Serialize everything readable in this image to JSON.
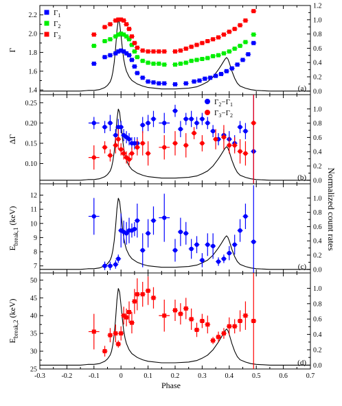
{
  "chart_data": [
    {
      "type": "scatter",
      "panel_label": "(a)",
      "ylabel": "Γ",
      "ylim": [
        1.35,
        2.3
      ],
      "yticks": [
        1.4,
        1.6,
        1.8,
        2.0,
        2.2
      ],
      "y2lim": [
        -0.05,
        1.2
      ],
      "y2ticks": [
        0.0,
        0.2,
        0.4,
        0.6,
        0.8,
        1.0,
        1.2
      ],
      "legend": {
        "position": "top-left",
        "entries": [
          {
            "base": "Γ",
            "sub": "1",
            "color": "#0000ff",
            "marker": "square"
          },
          {
            "base": "Γ",
            "sub": "2",
            "color": "#00ee00",
            "marker": "square"
          },
          {
            "base": "Γ",
            "sub": "3",
            "color": "#ff0000",
            "marker": "square"
          }
        ]
      },
      "series": [
        {
          "name": "Γ1",
          "color": "#0000ff",
          "marker": "square",
          "x": [
            -0.1,
            -0.06,
            -0.04,
            -0.02,
            -0.01,
            0.0,
            0.01,
            0.02,
            0.03,
            0.04,
            0.05,
            0.06,
            0.08,
            0.1,
            0.12,
            0.14,
            0.16,
            0.2,
            0.24,
            0.27,
            0.29,
            0.31,
            0.33,
            0.35,
            0.37,
            0.39,
            0.41,
            0.43,
            0.45,
            0.47,
            0.49
          ],
          "y": [
            1.68,
            1.75,
            1.77,
            1.79,
            1.81,
            1.82,
            1.81,
            1.79,
            1.77,
            1.72,
            1.65,
            1.58,
            1.53,
            1.49,
            1.48,
            1.47,
            1.47,
            1.46,
            1.47,
            1.49,
            1.5,
            1.52,
            1.53,
            1.55,
            1.57,
            1.6,
            1.63,
            1.67,
            1.72,
            1.78,
            1.9
          ],
          "xerr": 0.01,
          "yerr": 0.015
        },
        {
          "name": "Γ2",
          "color": "#00ee00",
          "marker": "square",
          "x": [
            -0.1,
            -0.06,
            -0.04,
            -0.02,
            -0.01,
            0.0,
            0.01,
            0.02,
            0.03,
            0.04,
            0.05,
            0.06,
            0.08,
            0.1,
            0.12,
            0.14,
            0.16,
            0.2,
            0.22,
            0.24,
            0.26,
            0.28,
            0.3,
            0.32,
            0.34,
            0.36,
            0.38,
            0.4,
            0.42,
            0.44,
            0.46,
            0.49
          ],
          "y": [
            1.87,
            1.92,
            1.94,
            1.97,
            1.99,
            2.0,
            1.99,
            1.97,
            1.94,
            1.88,
            1.81,
            1.75,
            1.71,
            1.69,
            1.68,
            1.68,
            1.67,
            1.67,
            1.68,
            1.69,
            1.71,
            1.72,
            1.73,
            1.74,
            1.76,
            1.77,
            1.79,
            1.81,
            1.84,
            1.87,
            1.91,
            1.99
          ],
          "xerr": 0.01,
          "yerr": 0.015
        },
        {
          "name": "Γ3",
          "color": "#ff0000",
          "marker": "square",
          "x": [
            -0.1,
            -0.06,
            -0.04,
            -0.02,
            -0.01,
            0.0,
            0.01,
            0.02,
            0.03,
            0.04,
            0.05,
            0.06,
            0.08,
            0.1,
            0.12,
            0.14,
            0.16,
            0.2,
            0.22,
            0.24,
            0.26,
            0.28,
            0.3,
            0.32,
            0.34,
            0.36,
            0.38,
            0.4,
            0.42,
            0.44,
            0.46,
            0.49
          ],
          "y": [
            1.99,
            2.07,
            2.1,
            2.14,
            2.15,
            2.15,
            2.14,
            2.1,
            2.05,
            1.97,
            1.9,
            1.85,
            1.82,
            1.81,
            1.81,
            1.81,
            1.81,
            1.81,
            1.82,
            1.84,
            1.86,
            1.88,
            1.9,
            1.92,
            1.94,
            1.96,
            1.99,
            2.02,
            2.05,
            2.09,
            2.14,
            2.24
          ],
          "xerr": 0.01,
          "yerr": 0.02
        }
      ]
    },
    {
      "type": "scatter",
      "panel_label": "(b)",
      "ylabel": "ΔΓ",
      "ylim": [
        0.05,
        0.27
      ],
      "yticks": [
        0.1,
        0.15,
        0.2,
        0.25
      ],
      "yticklabels": [
        "0.10",
        "0.15",
        "0.20",
        "0.25"
      ],
      "y2lim": [
        -0.05,
        1.2
      ],
      "y2ticks": [
        0.0,
        0.2,
        0.4,
        0.6,
        0.8,
        1.0
      ],
      "legend": {
        "position": "top-right",
        "entries": [
          {
            "base": "Γ",
            "sub": "2",
            "minus": "Γ",
            "sub2": "1",
            "color": "#0000ff",
            "marker": "circle"
          },
          {
            "base": "Γ",
            "sub": "3",
            "minus": "Γ",
            "sub2": "2",
            "color": "#ff0000",
            "marker": "circle"
          }
        ]
      },
      "series": [
        {
          "name": "Γ2−Γ1",
          "color": "#0000ff",
          "marker": "circle",
          "x": [
            -0.1,
            -0.06,
            -0.04,
            -0.02,
            -0.01,
            0.0,
            0.01,
            0.02,
            0.03,
            0.04,
            0.05,
            0.06,
            0.08,
            0.1,
            0.12,
            0.16,
            0.2,
            0.22,
            0.24,
            0.26,
            0.28,
            0.3,
            0.32,
            0.34,
            0.36,
            0.38,
            0.4,
            0.42,
            0.44,
            0.46,
            0.49
          ],
          "y": [
            0.2,
            0.19,
            0.2,
            0.17,
            0.19,
            0.19,
            0.17,
            0.165,
            0.16,
            0.15,
            0.15,
            0.15,
            0.195,
            0.2,
            0.21,
            0.2,
            0.23,
            0.185,
            0.21,
            0.21,
            0.2,
            0.21,
            0.2,
            0.18,
            0.16,
            0.17,
            0.16,
            0.15,
            0.19,
            0.18,
            0.13
          ],
          "xerr": [
            0.02,
            0.01,
            0.01,
            0.01,
            0.01,
            0.01,
            0.01,
            0.01,
            0.01,
            0.01,
            0.01,
            0.01,
            0.01,
            0.01,
            0.01,
            0.02,
            0.01,
            0.01,
            0.01,
            0.01,
            0.01,
            0.01,
            0.01,
            0.01,
            0.01,
            0.01,
            0.01,
            0.01,
            0.01,
            0.01,
            0.01
          ],
          "yerr": [
            0.015,
            0.015,
            0.02,
            0.015,
            0.02,
            0.015,
            0.015,
            0.015,
            0.015,
            0.015,
            0.015,
            0.015,
            0.02,
            0.02,
            0.02,
            0.025,
            0.015,
            0.02,
            0.015,
            0.02,
            0.015,
            0.015,
            0.015,
            0.015,
            0.015,
            0.015,
            0.02,
            0.02,
            0.015,
            0.02,
            0.2
          ]
        },
        {
          "name": "Γ3−Γ2",
          "color": "#ff0000",
          "marker": "circle",
          "x": [
            -0.1,
            -0.06,
            -0.04,
            -0.02,
            -0.01,
            0.0,
            0.01,
            0.02,
            0.03,
            0.04,
            0.06,
            0.08,
            0.1,
            0.16,
            0.2,
            0.24,
            0.27,
            0.3,
            0.35,
            0.38,
            0.4,
            0.42,
            0.44,
            0.46,
            0.49
          ],
          "y": [
            0.115,
            0.14,
            0.12,
            0.145,
            0.16,
            0.135,
            0.125,
            0.115,
            0.11,
            0.125,
            0.14,
            0.15,
            0.125,
            0.14,
            0.15,
            0.145,
            0.175,
            0.15,
            0.16,
            0.165,
            0.145,
            0.145,
            0.13,
            0.125,
            0.2
          ],
          "xerr": [
            0.02,
            0.01,
            0.01,
            0.01,
            0.01,
            0.01,
            0.01,
            0.01,
            0.01,
            0.01,
            0.01,
            0.01,
            0.01,
            0.02,
            0.01,
            0.01,
            0.01,
            0.01,
            0.01,
            0.01,
            0.01,
            0.01,
            0.01,
            0.01,
            0.01
          ],
          "yerr": [
            0.03,
            0.015,
            0.015,
            0.02,
            0.025,
            0.015,
            0.015,
            0.015,
            0.015,
            0.015,
            0.02,
            0.03,
            0.03,
            0.03,
            0.03,
            0.03,
            0.015,
            0.02,
            0.025,
            0.03,
            0.02,
            0.02,
            0.03,
            0.03,
            0.25
          ]
        }
      ]
    },
    {
      "type": "scatter",
      "panel_label": "(c)",
      "ylabel": "E",
      "ylabel_sub": "break,1",
      "ylabel_unit": " (keV)",
      "ylim": [
        6.5,
        12.8
      ],
      "yticks": [
        7,
        8,
        9,
        10,
        11,
        12
      ],
      "y2lim": [
        -0.05,
        1.2
      ],
      "y2ticks": [
        0.0,
        0.2,
        0.4,
        0.6,
        0.8,
        1.0
      ],
      "series": [
        {
          "name": "Ebreak,1",
          "color": "#0000ff",
          "marker": "circle",
          "x": [
            -0.1,
            -0.06,
            -0.04,
            -0.02,
            -0.01,
            0.0,
            0.01,
            0.02,
            0.03,
            0.04,
            0.05,
            0.06,
            0.08,
            0.1,
            0.12,
            0.16,
            0.2,
            0.22,
            0.24,
            0.26,
            0.28,
            0.3,
            0.32,
            0.34,
            0.36,
            0.38,
            0.4,
            0.42,
            0.44,
            0.46,
            0.49
          ],
          "y": [
            10.5,
            7.0,
            7.0,
            7.1,
            7.5,
            9.5,
            9.4,
            9.3,
            9.5,
            9.5,
            9.6,
            10.2,
            8.1,
            9.3,
            10.2,
            10.4,
            8.1,
            9.4,
            9.3,
            8.2,
            8.5,
            7.4,
            8.5,
            8.4,
            7.3,
            7.5,
            7.9,
            8.5,
            9.5,
            10.5,
            8.7
          ],
          "xerr": [
            0.02,
            0.01,
            0.01,
            0.01,
            0.01,
            0.01,
            0.01,
            0.01,
            0.01,
            0.01,
            0.01,
            0.01,
            0.01,
            0.01,
            0.01,
            0.02,
            0.01,
            0.01,
            0.01,
            0.01,
            0.01,
            0.01,
            0.01,
            0.01,
            0.01,
            0.01,
            0.01,
            0.01,
            0.01,
            0.01,
            0.01
          ],
          "yerr": [
            1.3,
            0.3,
            0.3,
            0.3,
            0.3,
            1.2,
            0.8,
            0.8,
            0.9,
            0.5,
            0.5,
            1.2,
            1.2,
            1.0,
            1.0,
            1.7,
            0.8,
            1.0,
            0.8,
            0.7,
            0.6,
            0.5,
            0.8,
            0.9,
            0.3,
            0.3,
            0.5,
            0.7,
            0.8,
            0.9,
            4.0
          ]
        }
      ]
    },
    {
      "type": "scatter",
      "panel_label": "(d)",
      "ylabel": "E",
      "ylabel_sub": "break,2",
      "ylabel_unit": " (keV)",
      "ylim": [
        25,
        52
      ],
      "yticks": [
        25,
        30,
        35,
        40,
        45,
        50
      ],
      "y2lim": [
        -0.05,
        1.2
      ],
      "y2ticks": [
        0.0,
        0.2,
        0.4,
        0.6,
        0.8,
        1.0
      ],
      "series": [
        {
          "name": "Ebreak,2",
          "color": "#ff0000",
          "marker": "square",
          "x": [
            -0.1,
            -0.06,
            -0.04,
            -0.02,
            -0.01,
            0.0,
            0.01,
            0.02,
            0.03,
            0.04,
            0.05,
            0.06,
            0.08,
            0.1,
            0.12,
            0.16,
            0.2,
            0.22,
            0.24,
            0.26,
            0.28,
            0.3,
            0.32,
            0.34,
            0.36,
            0.38,
            0.4,
            0.42,
            0.44,
            0.46,
            0.49
          ],
          "y": [
            35.5,
            30.0,
            34.5,
            35.0,
            32.0,
            35.0,
            40.0,
            39.5,
            41.0,
            38.0,
            44.0,
            46.0,
            46.0,
            47.0,
            45.0,
            40.0,
            41.5,
            40.5,
            42.0,
            39.0,
            36.0,
            38.5,
            37.5,
            33.0,
            34.0,
            35.0,
            37.0,
            37.0,
            38.5,
            40.0,
            38.5
          ],
          "xerr": [
            0.02,
            0.01,
            0.01,
            0.01,
            0.01,
            0.01,
            0.01,
            0.01,
            0.01,
            0.01,
            0.01,
            0.01,
            0.01,
            0.01,
            0.01,
            0.02,
            0.01,
            0.01,
            0.01,
            0.01,
            0.01,
            0.01,
            0.01,
            0.01,
            0.01,
            0.01,
            0.01,
            0.01,
            0.01,
            0.01,
            0.01
          ],
          "yerr": [
            5.0,
            1.5,
            2.0,
            2.5,
            1.0,
            2.0,
            2.5,
            2.5,
            3.0,
            3.0,
            3.5,
            4.5,
            3.5,
            4.0,
            3.0,
            4.5,
            3.0,
            3.0,
            3.0,
            3.0,
            2.0,
            2.0,
            2.5,
            1.0,
            1.5,
            1.5,
            2.5,
            2.0,
            3.0,
            4.0,
            15.0
          ]
        }
      ]
    }
  ],
  "shared_axes": {
    "xlabel": "Phase",
    "xlim": [
      -0.3,
      0.7
    ],
    "xticks": [
      -0.3,
      -0.2,
      -0.1,
      0.0,
      0.1,
      0.2,
      0.3,
      0.4,
      0.5,
      0.6,
      0.7
    ],
    "xticklabels": [
      "-0.3",
      "-0.2",
      "-0.1",
      "0",
      "0.1",
      "0.2",
      "0.3",
      "0.4",
      "0.5",
      "0.6",
      "0.7"
    ],
    "y2label": "Normalized count rates"
  },
  "pulse_profile": {
    "color": "#000000",
    "x": [
      -0.3,
      -0.25,
      -0.2,
      -0.15,
      -0.12,
      -0.1,
      -0.08,
      -0.06,
      -0.05,
      -0.04,
      -0.035,
      -0.03,
      -0.025,
      -0.02,
      -0.015,
      -0.01,
      -0.005,
      0.0,
      0.005,
      0.01,
      0.015,
      0.02,
      0.03,
      0.04,
      0.06,
      0.08,
      0.1,
      0.15,
      0.2,
      0.25,
      0.28,
      0.3,
      0.32,
      0.34,
      0.35,
      0.36,
      0.37,
      0.38,
      0.385,
      0.39,
      0.395,
      0.4,
      0.41,
      0.42,
      0.43,
      0.44,
      0.46,
      0.48,
      0.5,
      0.55,
      0.6,
      0.65,
      0.7
    ],
    "y": [
      0.0,
      0.0,
      0.0,
      0.0,
      0.01,
      0.01,
      0.02,
      0.05,
      0.08,
      0.13,
      0.18,
      0.27,
      0.4,
      0.6,
      0.85,
      1.0,
      0.95,
      0.78,
      0.6,
      0.45,
      0.35,
      0.28,
      0.2,
      0.15,
      0.1,
      0.07,
      0.05,
      0.03,
      0.03,
      0.04,
      0.06,
      0.09,
      0.13,
      0.2,
      0.25,
      0.3,
      0.36,
      0.42,
      0.45,
      0.47,
      0.45,
      0.4,
      0.28,
      0.18,
      0.11,
      0.07,
      0.04,
      0.02,
      0.01,
      0.0,
      0.0,
      0.0,
      0.0
    ]
  }
}
